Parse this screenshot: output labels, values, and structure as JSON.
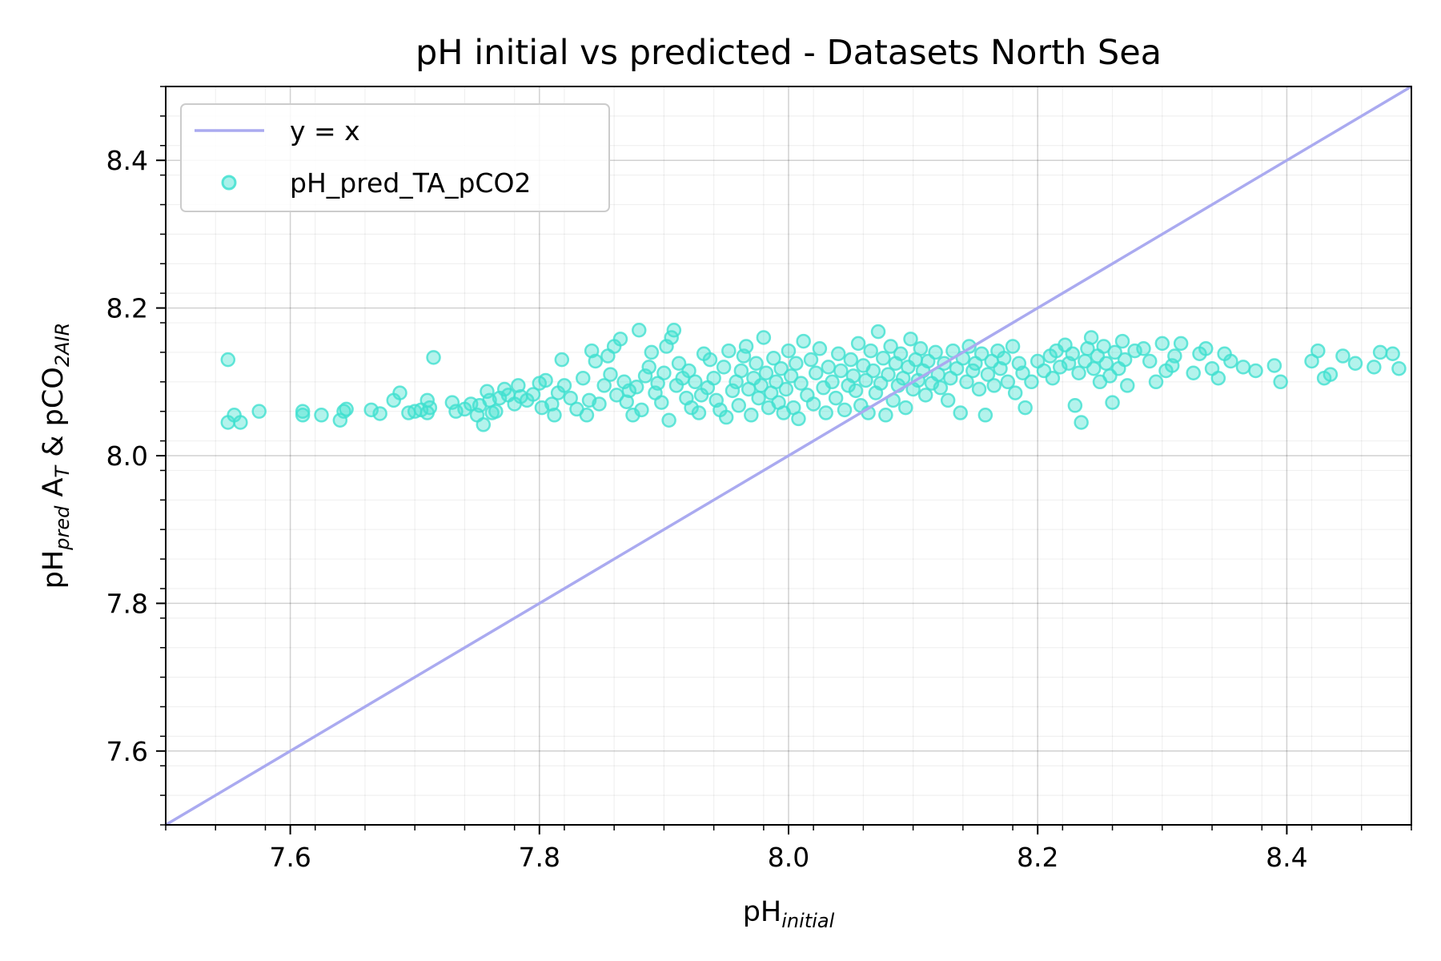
{
  "chart_data": {
    "type": "scatter",
    "title": "pH initial vs predicted - Datasets North Sea",
    "xlabel": {
      "main": "pH",
      "sub": "initial"
    },
    "ylabel": {
      "p1": "pH",
      "sub1": "pred",
      "p2": " A",
      "sub2": "T",
      "p3": " & pCO",
      "sub3": "2AIR"
    },
    "xlim": [
      7.5,
      8.5
    ],
    "ylim": [
      7.5,
      8.5
    ],
    "x_ticks": [
      7.6,
      7.8,
      8.0,
      8.2,
      8.4
    ],
    "y_ticks": [
      7.6,
      7.8,
      8.0,
      8.2,
      8.4
    ],
    "x_tick_labels": [
      "7.6",
      "7.8",
      "8.0",
      "8.2",
      "8.4"
    ],
    "y_tick_labels": [
      "7.6",
      "7.8",
      "8.0",
      "8.2",
      "8.4"
    ],
    "grid": true,
    "minor_grid": true,
    "legend_position": "top-left",
    "series": [
      {
        "name": "y = x",
        "kind": "line",
        "color": "#aaaaf0",
        "x": [
          7.5,
          8.5
        ],
        "y": [
          7.5,
          8.5
        ]
      },
      {
        "name": "pH_pred_TA_pCO2",
        "kind": "scatter",
        "color": "#40e0d0",
        "points": [
          [
            7.55,
            8.13
          ],
          [
            7.55,
            8.045
          ],
          [
            7.555,
            8.055
          ],
          [
            7.56,
            8.045
          ],
          [
            7.575,
            8.06
          ],
          [
            7.61,
            8.055
          ],
          [
            7.61,
            8.06
          ],
          [
            7.625,
            8.055
          ],
          [
            7.64,
            8.048
          ],
          [
            7.643,
            8.06
          ],
          [
            7.645,
            8.063
          ],
          [
            7.665,
            8.062
          ],
          [
            7.672,
            8.057
          ],
          [
            7.683,
            8.075
          ],
          [
            7.688,
            8.085
          ],
          [
            7.695,
            8.058
          ],
          [
            7.7,
            8.06
          ],
          [
            7.705,
            8.062
          ],
          [
            7.71,
            8.058
          ],
          [
            7.71,
            8.075
          ],
          [
            7.712,
            8.065
          ],
          [
            7.715,
            8.133
          ],
          [
            7.73,
            8.072
          ],
          [
            7.733,
            8.06
          ],
          [
            7.74,
            8.063
          ],
          [
            7.745,
            8.07
          ],
          [
            7.75,
            8.055
          ],
          [
            7.752,
            8.068
          ],
          [
            7.755,
            8.042
          ],
          [
            7.758,
            8.087
          ],
          [
            7.76,
            8.075
          ],
          [
            7.762,
            8.058
          ],
          [
            7.765,
            8.06
          ],
          [
            7.768,
            8.078
          ],
          [
            7.772,
            8.09
          ],
          [
            7.775,
            8.082
          ],
          [
            7.78,
            8.07
          ],
          [
            7.783,
            8.095
          ],
          [
            7.785,
            8.08
          ],
          [
            7.79,
            8.075
          ],
          [
            7.795,
            8.083
          ],
          [
            7.8,
            8.098
          ],
          [
            7.802,
            8.065
          ],
          [
            7.805,
            8.102
          ],
          [
            7.81,
            8.07
          ],
          [
            7.812,
            8.055
          ],
          [
            7.815,
            8.085
          ],
          [
            7.818,
            8.13
          ],
          [
            7.82,
            8.095
          ],
          [
            7.825,
            8.078
          ],
          [
            7.83,
            8.063
          ],
          [
            7.835,
            8.105
          ],
          [
            7.838,
            8.055
          ],
          [
            7.84,
            8.075
          ],
          [
            7.842,
            8.142
          ],
          [
            7.845,
            8.128
          ],
          [
            7.848,
            8.07
          ],
          [
            7.852,
            8.095
          ],
          [
            7.855,
            8.135
          ],
          [
            7.857,
            8.11
          ],
          [
            7.86,
            8.148
          ],
          [
            7.862,
            8.082
          ],
          [
            7.865,
            8.158
          ],
          [
            7.868,
            8.1
          ],
          [
            7.87,
            8.073
          ],
          [
            7.872,
            8.088
          ],
          [
            7.875,
            8.055
          ],
          [
            7.878,
            8.093
          ],
          [
            7.88,
            8.17
          ],
          [
            7.882,
            8.062
          ],
          [
            7.885,
            8.108
          ],
          [
            7.888,
            8.12
          ],
          [
            7.89,
            8.14
          ],
          [
            7.893,
            8.085
          ],
          [
            7.895,
            8.098
          ],
          [
            7.898,
            8.072
          ],
          [
            7.9,
            8.112
          ],
          [
            7.902,
            8.148
          ],
          [
            7.904,
            8.048
          ],
          [
            7.906,
            8.16
          ],
          [
            7.908,
            8.17
          ],
          [
            7.91,
            8.095
          ],
          [
            7.912,
            8.125
          ],
          [
            7.915,
            8.105
          ],
          [
            7.918,
            8.078
          ],
          [
            7.92,
            8.115
          ],
          [
            7.922,
            8.065
          ],
          [
            7.925,
            8.1
          ],
          [
            7.928,
            8.058
          ],
          [
            7.93,
            8.082
          ],
          [
            7.932,
            8.138
          ],
          [
            7.935,
            8.092
          ],
          [
            7.937,
            8.13
          ],
          [
            7.94,
            8.105
          ],
          [
            7.942,
            8.075
          ],
          [
            7.945,
            8.062
          ],
          [
            7.948,
            8.12
          ],
          [
            7.95,
            8.052
          ],
          [
            7.952,
            8.142
          ],
          [
            7.955,
            8.088
          ],
          [
            7.958,
            8.1
          ],
          [
            7.96,
            8.068
          ],
          [
            7.962,
            8.115
          ],
          [
            7.964,
            8.135
          ],
          [
            7.966,
            8.148
          ],
          [
            7.968,
            8.09
          ],
          [
            7.97,
            8.055
          ],
          [
            7.972,
            8.105
          ],
          [
            7.974,
            8.125
          ],
          [
            7.976,
            8.078
          ],
          [
            7.978,
            8.095
          ],
          [
            7.98,
            8.16
          ],
          [
            7.982,
            8.112
          ],
          [
            7.984,
            8.065
          ],
          [
            7.986,
            8.085
          ],
          [
            7.988,
            8.132
          ],
          [
            7.99,
            8.1
          ],
          [
            7.992,
            8.072
          ],
          [
            7.994,
            8.118
          ],
          [
            7.996,
            8.058
          ],
          [
            7.998,
            8.09
          ],
          [
            8.0,
            8.142
          ],
          [
            8.002,
            8.108
          ],
          [
            8.004,
            8.065
          ],
          [
            8.006,
            8.125
          ],
          [
            8.008,
            8.05
          ],
          [
            8.01,
            8.098
          ],
          [
            8.012,
            8.155
          ],
          [
            8.015,
            8.082
          ],
          [
            8.018,
            8.13
          ],
          [
            8.02,
            8.07
          ],
          [
            8.022,
            8.112
          ],
          [
            8.025,
            8.145
          ],
          [
            8.028,
            8.092
          ],
          [
            8.03,
            8.058
          ],
          [
            8.032,
            8.12
          ],
          [
            8.035,
            8.1
          ],
          [
            8.038,
            8.078
          ],
          [
            8.04,
            8.138
          ],
          [
            8.042,
            8.115
          ],
          [
            8.045,
            8.062
          ],
          [
            8.048,
            8.095
          ],
          [
            8.05,
            8.13
          ],
          [
            8.052,
            8.108
          ],
          [
            8.054,
            8.088
          ],
          [
            8.056,
            8.152
          ],
          [
            8.058,
            8.068
          ],
          [
            8.06,
            8.122
          ],
          [
            8.062,
            8.102
          ],
          [
            8.064,
            8.058
          ],
          [
            8.066,
            8.142
          ],
          [
            8.068,
            8.115
          ],
          [
            8.07,
            8.085
          ],
          [
            8.072,
            8.168
          ],
          [
            8.074,
            8.098
          ],
          [
            8.076,
            8.132
          ],
          [
            8.078,
            8.055
          ],
          [
            8.08,
            8.11
          ],
          [
            8.082,
            8.148
          ],
          [
            8.084,
            8.075
          ],
          [
            8.086,
            8.125
          ],
          [
            8.088,
            8.095
          ],
          [
            8.09,
            8.138
          ],
          [
            8.092,
            8.105
          ],
          [
            8.094,
            8.065
          ],
          [
            8.096,
            8.12
          ],
          [
            8.098,
            8.158
          ],
          [
            8.1,
            8.09
          ],
          [
            8.102,
            8.13
          ],
          [
            8.104,
            8.102
          ],
          [
            8.106,
            8.145
          ],
          [
            8.108,
            8.115
          ],
          [
            8.11,
            8.082
          ],
          [
            8.112,
            8.128
          ],
          [
            8.115,
            8.098
          ],
          [
            8.118,
            8.14
          ],
          [
            8.12,
            8.11
          ],
          [
            8.122,
            8.092
          ],
          [
            8.125,
            8.125
          ],
          [
            8.128,
            8.075
          ],
          [
            8.13,
            8.105
          ],
          [
            8.132,
            8.142
          ],
          [
            8.135,
            8.118
          ],
          [
            8.138,
            8.058
          ],
          [
            8.14,
            8.132
          ],
          [
            8.143,
            8.1
          ],
          [
            8.145,
            8.148
          ],
          [
            8.148,
            8.115
          ],
          [
            8.15,
            8.125
          ],
          [
            8.153,
            8.09
          ],
          [
            8.155,
            8.138
          ],
          [
            8.158,
            8.055
          ],
          [
            8.16,
            8.11
          ],
          [
            8.163,
            8.128
          ],
          [
            8.165,
            8.095
          ],
          [
            8.168,
            8.142
          ],
          [
            8.17,
            8.118
          ],
          [
            8.173,
            8.132
          ],
          [
            8.176,
            8.1
          ],
          [
            8.18,
            8.148
          ],
          [
            8.182,
            8.085
          ],
          [
            8.185,
            8.125
          ],
          [
            8.188,
            8.112
          ],
          [
            8.19,
            8.065
          ],
          [
            8.195,
            8.1
          ],
          [
            8.2,
            8.128
          ],
          [
            8.205,
            8.115
          ],
          [
            8.21,
            8.135
          ],
          [
            8.212,
            8.105
          ],
          [
            8.215,
            8.142
          ],
          [
            8.218,
            8.12
          ],
          [
            8.222,
            8.15
          ],
          [
            8.225,
            8.125
          ],
          [
            8.228,
            8.138
          ],
          [
            8.23,
            8.068
          ],
          [
            8.233,
            8.112
          ],
          [
            8.235,
            8.045
          ],
          [
            8.238,
            8.128
          ],
          [
            8.24,
            8.145
          ],
          [
            8.243,
            8.16
          ],
          [
            8.245,
            8.118
          ],
          [
            8.248,
            8.135
          ],
          [
            8.25,
            8.1
          ],
          [
            8.253,
            8.148
          ],
          [
            8.255,
            8.125
          ],
          [
            8.258,
            8.108
          ],
          [
            8.26,
            8.072
          ],
          [
            8.262,
            8.14
          ],
          [
            8.265,
            8.118
          ],
          [
            8.268,
            8.155
          ],
          [
            8.27,
            8.13
          ],
          [
            8.272,
            8.095
          ],
          [
            8.278,
            8.142
          ],
          [
            8.285,
            8.145
          ],
          [
            8.29,
            8.128
          ],
          [
            8.295,
            8.1
          ],
          [
            8.3,
            8.152
          ],
          [
            8.303,
            8.115
          ],
          [
            8.308,
            8.122
          ],
          [
            8.31,
            8.135
          ],
          [
            8.315,
            8.152
          ],
          [
            8.325,
            8.112
          ],
          [
            8.33,
            8.138
          ],
          [
            8.335,
            8.145
          ],
          [
            8.34,
            8.118
          ],
          [
            8.345,
            8.105
          ],
          [
            8.35,
            8.138
          ],
          [
            8.355,
            8.128
          ],
          [
            8.365,
            8.12
          ],
          [
            8.375,
            8.115
          ],
          [
            8.39,
            8.122
          ],
          [
            8.395,
            8.1
          ],
          [
            8.42,
            8.128
          ],
          [
            8.425,
            8.142
          ],
          [
            8.43,
            8.105
          ],
          [
            8.435,
            8.11
          ],
          [
            8.445,
            8.135
          ],
          [
            8.455,
            8.125
          ],
          [
            8.47,
            8.12
          ],
          [
            8.475,
            8.14
          ],
          [
            8.485,
            8.138
          ],
          [
            8.49,
            8.118
          ]
        ]
      }
    ]
  }
}
